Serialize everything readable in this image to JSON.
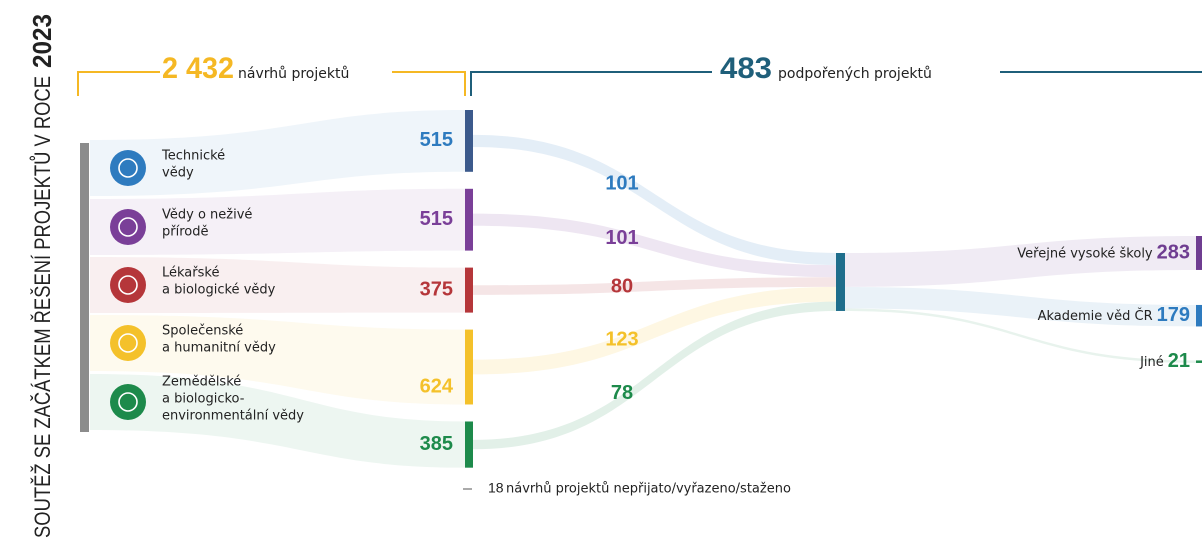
{
  "chart_data": {
    "type": "sankey",
    "side_title": "SOUTĚŽ SE ZAČÁTKEM ŘEŠENÍ PROJEKTŮ V ROCE",
    "year": "2023",
    "submitted": {
      "total": {
        "value": 2432,
        "label": "2 432"
      },
      "label": "návrhů projektů",
      "color": "#f5b824"
    },
    "supported": {
      "total": 483,
      "label": "podpořených projektů",
      "color": "#1f5f7a",
      "node_color": "#1f6e8c"
    },
    "fields": [
      {
        "name_lines": [
          "Technické",
          "vědy"
        ],
        "submitted": 515,
        "supported": 101,
        "color": "#2e7bbf",
        "bar_color": "#3c5a8c"
      },
      {
        "name_lines": [
          "Vědy o neživé",
          "přírodě"
        ],
        "submitted": 515,
        "supported": 101,
        "color": "#7a3f98",
        "bar_color": "#7a3f98"
      },
      {
        "name_lines": [
          "Lékařské",
          "a biologické vědy"
        ],
        "submitted": 375,
        "supported": 80,
        "color": "#b5363a",
        "bar_color": "#b5363a"
      },
      {
        "name_lines": [
          "Společenské",
          "a humanitní vědy"
        ],
        "submitted": 624,
        "supported": 123,
        "color": "#f4c12a",
        "bar_color": "#f4c12a"
      },
      {
        "name_lines": [
          "Zemědělské",
          "a biologicko-",
          "environmentální vědy"
        ],
        "submitted": 385,
        "supported": 78,
        "color": "#1d8a4b",
        "bar_color": "#1d8a4b"
      }
    ],
    "recipients": [
      {
        "name": "Veřejné vysoké školy",
        "value": 283,
        "color": "#6f3d91"
      },
      {
        "name": "Akademie věd ČR",
        "value": 179,
        "color": "#2e7bbf"
      },
      {
        "name": "Jiné",
        "value": 21,
        "color": "#1d8a4b"
      }
    ],
    "rejected": {
      "value": 18,
      "label": "návrhů projektů nepřijato/vyřazeno/staženo",
      "color": "#aaaaaa"
    }
  }
}
